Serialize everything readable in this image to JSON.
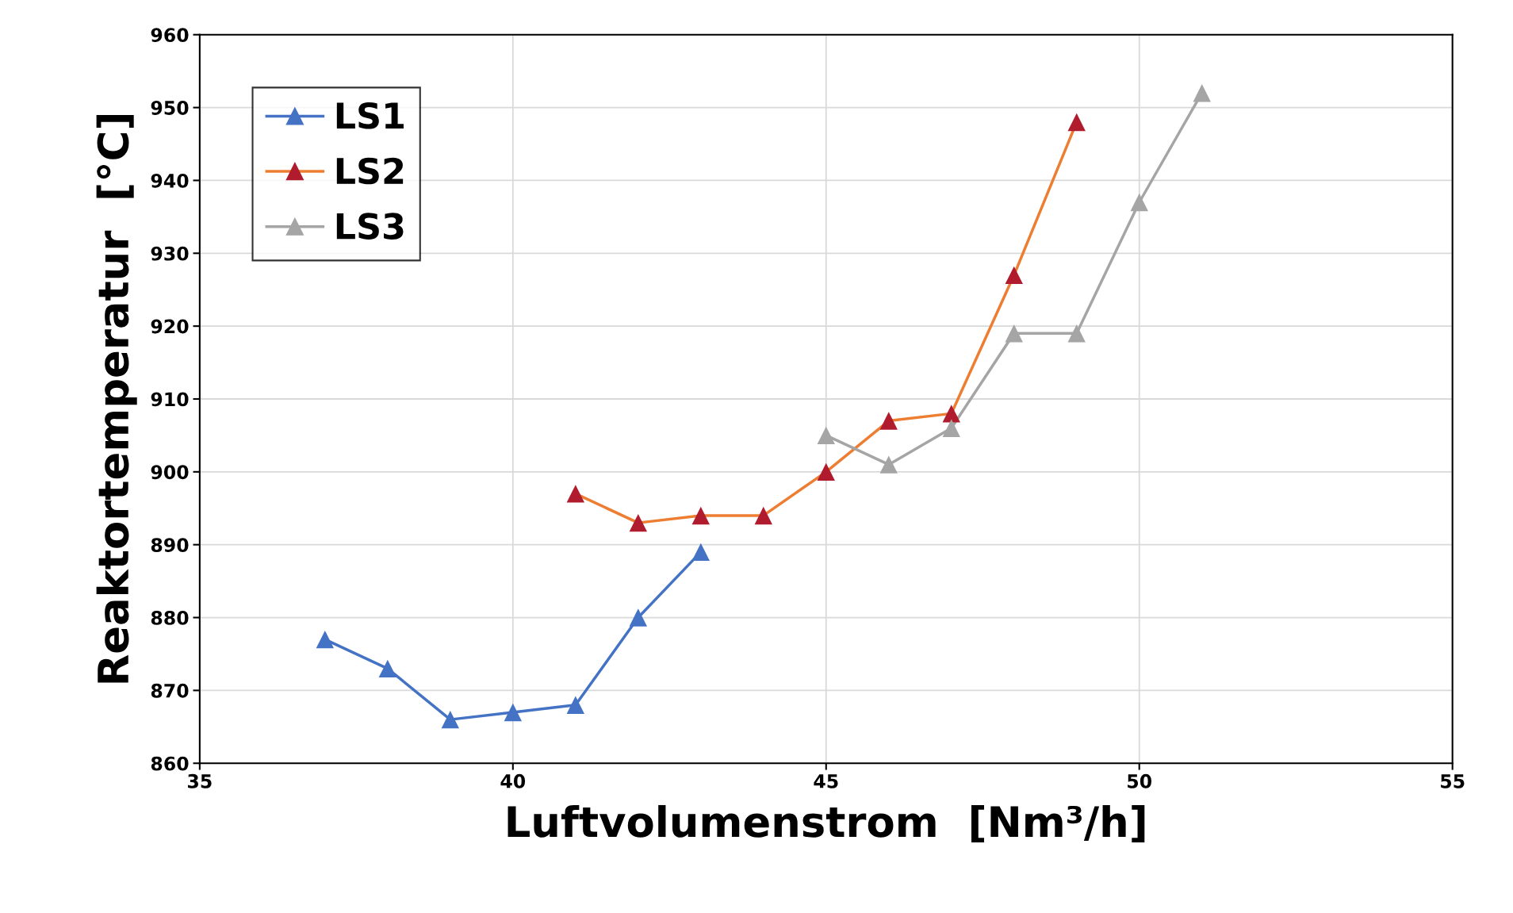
{
  "chart_data": {
    "type": "line",
    "xlabel": "Luftvolumenstrom  [Nm³/h]",
    "ylabel": "Reaktortemperatur  [°C]",
    "xlim": [
      35,
      55
    ],
    "xticks": [
      35,
      40,
      45,
      50,
      55
    ],
    "ylim": [
      860,
      960
    ],
    "yticks": [
      860,
      870,
      880,
      890,
      900,
      910,
      920,
      930,
      940,
      950,
      960
    ],
    "grid": true,
    "legend": "top left",
    "marker": "triangle",
    "line_style": "solid",
    "series": [
      {
        "name": "LS1",
        "color": "#4472c4",
        "x": [
          37,
          38,
          39,
          40,
          41,
          42,
          43
        ],
        "values": [
          877,
          873,
          866,
          867,
          868,
          880,
          889
        ]
      },
      {
        "name": "LS2",
        "color": "#ed7d31",
        "colors": [
          "#b01c2e",
          "#b01c2e",
          "#b01c2e",
          "#b01c2e",
          "#b01c2e",
          "#b01c2e",
          "#b01c2e",
          "#b01c2e",
          "#b01c2e"
        ],
        "x": [
          41,
          42,
          43,
          44,
          45,
          46,
          47,
          48,
          49
        ],
        "values": [
          897,
          893,
          894,
          894,
          900,
          907,
          908,
          927,
          948
        ]
      },
      {
        "name": "LS3",
        "color": "#a5a5a5",
        "x": [
          45,
          46,
          47,
          48,
          49,
          50,
          51
        ],
        "values": [
          905,
          901,
          906,
          919,
          919,
          937,
          952
        ]
      }
    ]
  }
}
